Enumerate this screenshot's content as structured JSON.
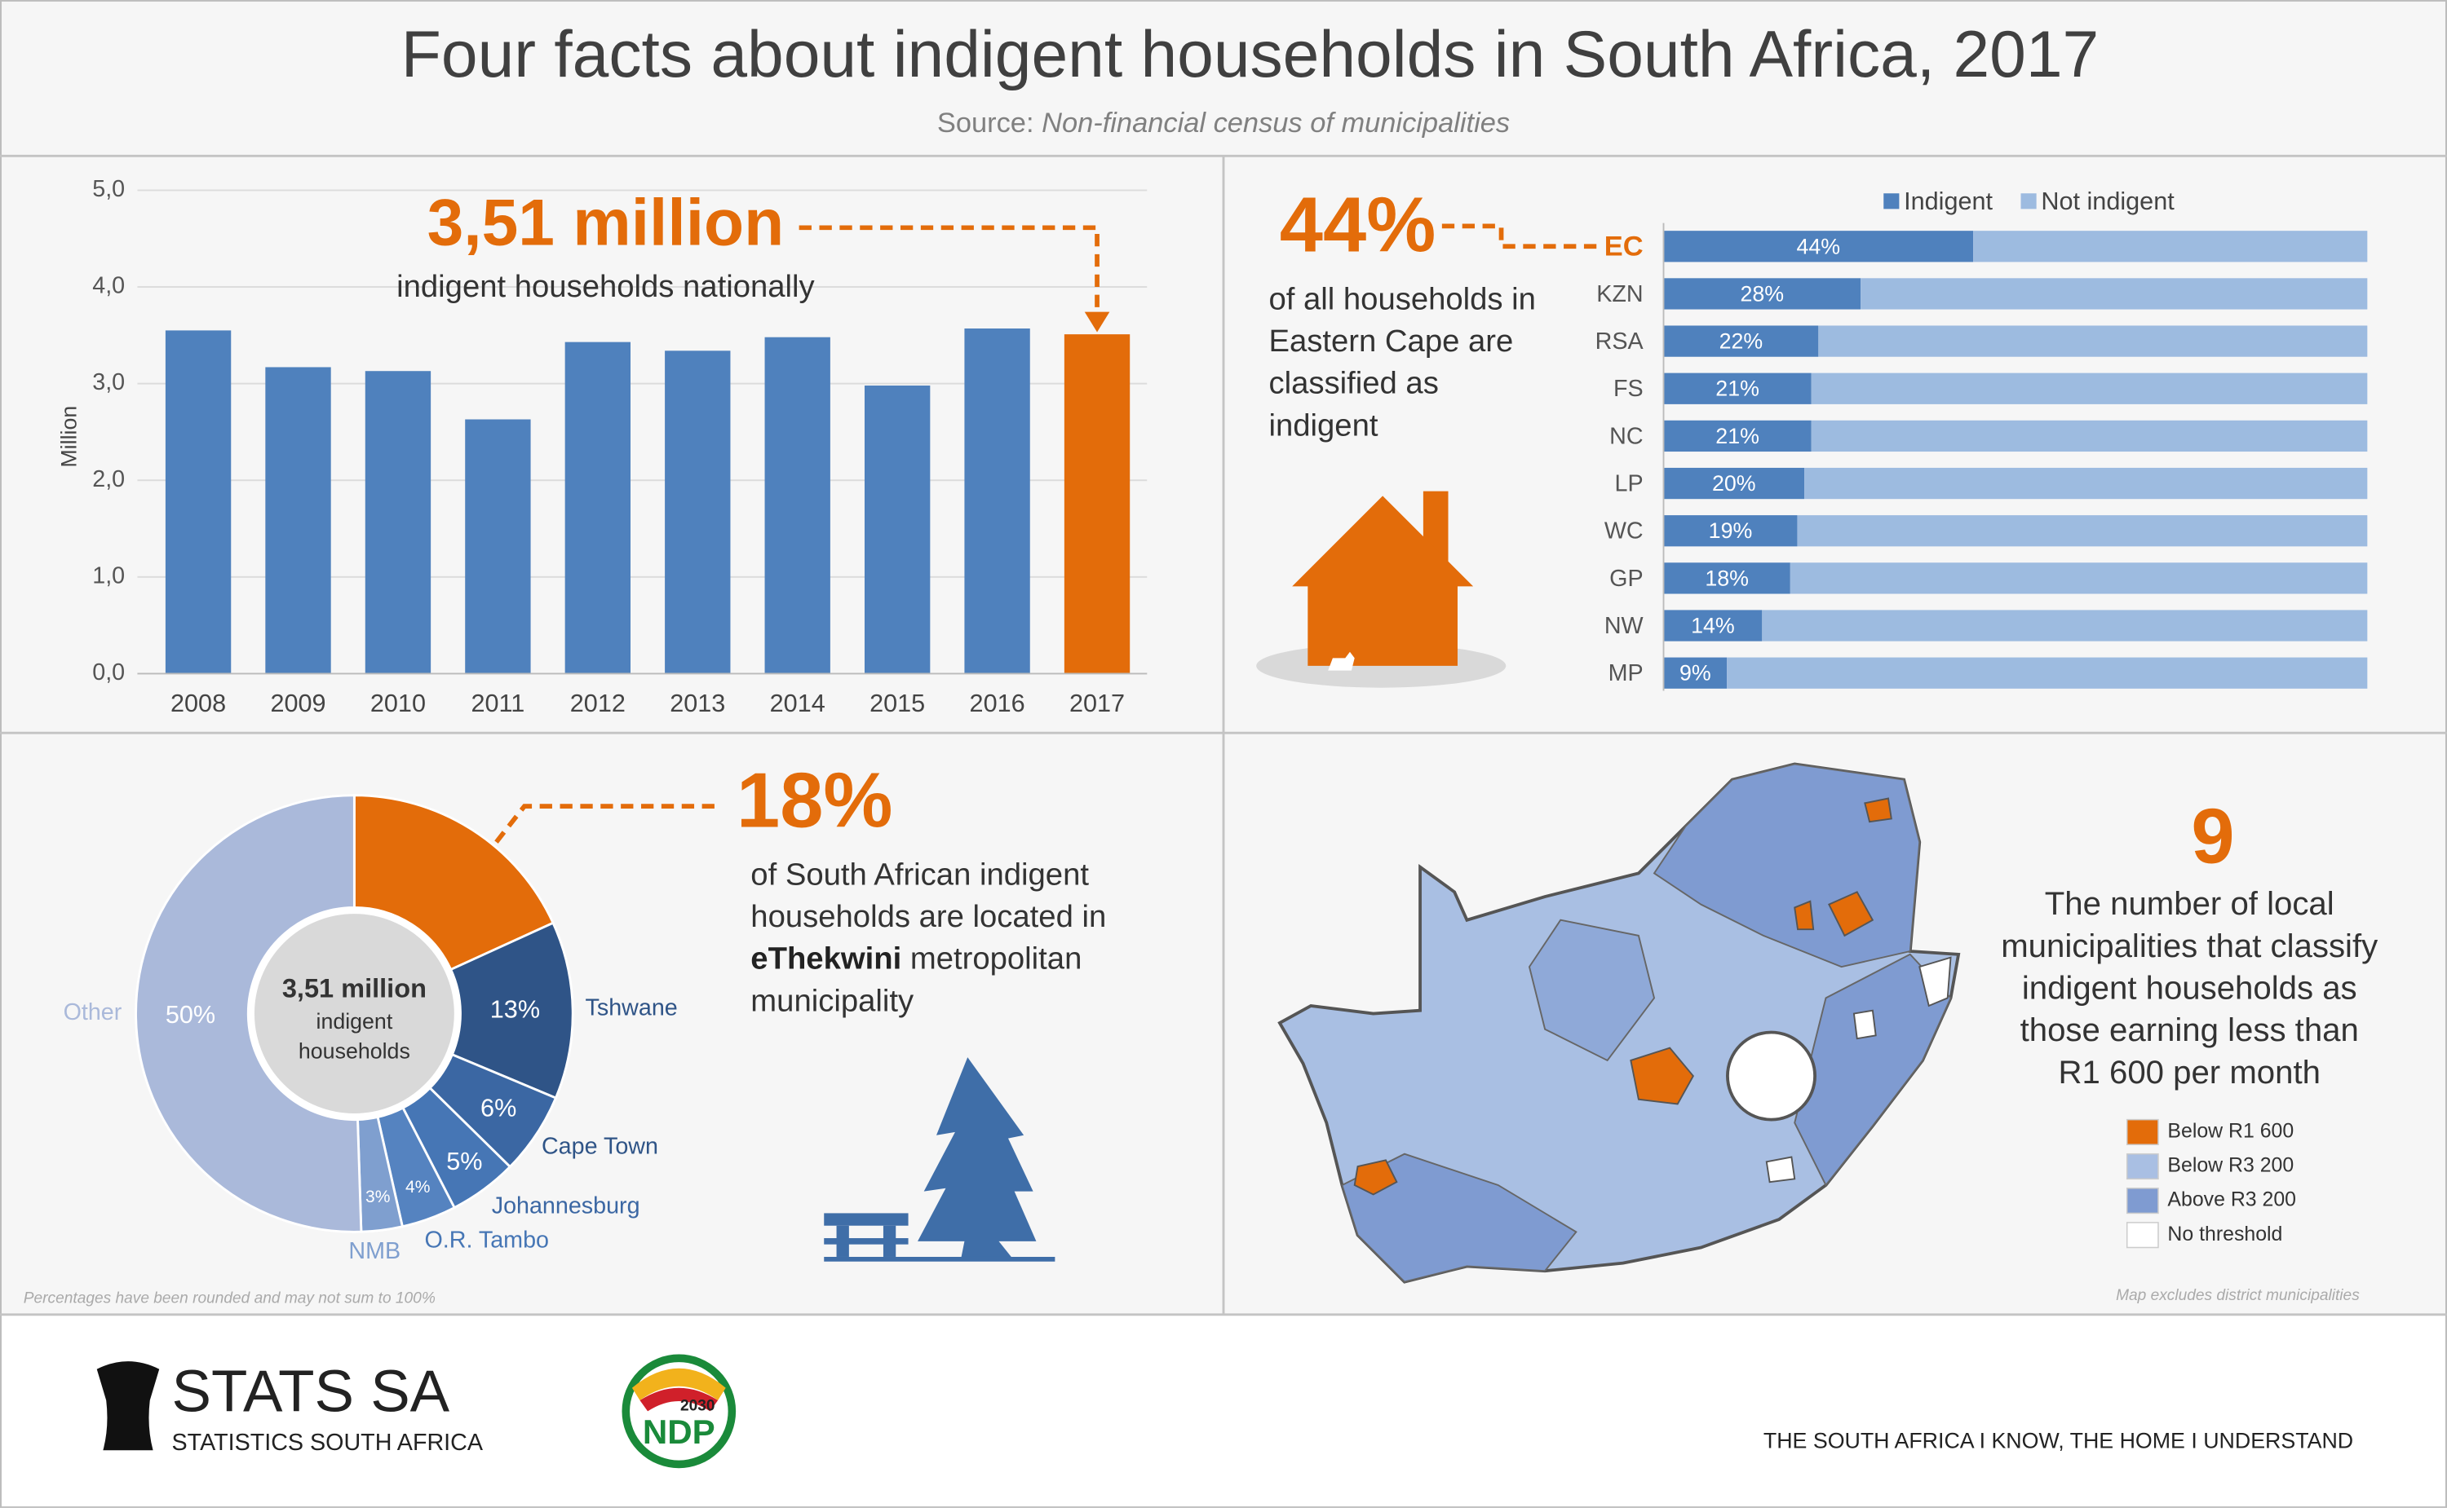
{
  "header": {
    "title": "Four facts about indigent households in South Africa, 2017",
    "source_label": "Source:",
    "source": "Non-financial census of municipalities"
  },
  "chart_data": [
    {
      "type": "bar",
      "y_label": "Million",
      "headline": "3,51 million",
      "headline_sub": "indigent households nationally",
      "headline_color": "#e36c0a",
      "categories": [
        "2008",
        "2009",
        "2010",
        "2011",
        "2012",
        "2013",
        "2014",
        "2015",
        "2016",
        "2017"
      ],
      "values": [
        3.55,
        3.17,
        3.13,
        2.63,
        3.43,
        3.34,
        3.48,
        2.98,
        3.57,
        3.51
      ],
      "colors": [
        "#4f81bd",
        "#4f81bd",
        "#4f81bd",
        "#4f81bd",
        "#4f81bd",
        "#4f81bd",
        "#4f81bd",
        "#4f81bd",
        "#4f81bd",
        "#e36c0a"
      ],
      "ylim": [
        0,
        5
      ],
      "yticks": [
        {
          "value": 0,
          "label": "0,0"
        },
        {
          "value": 1,
          "label": "1,0"
        },
        {
          "value": 2,
          "label": "2,0"
        },
        {
          "value": 3,
          "label": "3,0"
        },
        {
          "value": 4,
          "label": "4,0"
        },
        {
          "value": 5,
          "label": "5,0"
        }
      ],
      "grid": true
    },
    {
      "type": "stacked_hbar",
      "headline": "44%",
      "headline_color": "#e36c0a",
      "text_lines": [
        "of all households in",
        "Eastern Cape are",
        "classified as",
        "indigent"
      ],
      "categories": [
        "EC",
        "KZN",
        "RSA",
        "FS",
        "NC",
        "LP",
        "WC",
        "GP",
        "NW",
        "MP"
      ],
      "category_colors": [
        "#e36c0a",
        "#555555",
        "#555555",
        "#555555",
        "#555555",
        "#555555",
        "#555555",
        "#555555",
        "#555555",
        "#555555"
      ],
      "xlim": [
        0,
        100
      ],
      "legend": "top",
      "series": [
        {
          "name": "Indigent",
          "color": "#4f81bd",
          "values": [
            44,
            28,
            22,
            21,
            21,
            20,
            19,
            18,
            14,
            9
          ],
          "value_labels": [
            "44%",
            "28%",
            "22%",
            "21%",
            "21%",
            "20%",
            "19%",
            "18%",
            "14%",
            "9%"
          ]
        },
        {
          "name": "Not indigent",
          "color": "#9dbbe0",
          "values": [
            56,
            72,
            78,
            79,
            79,
            80,
            81,
            82,
            86,
            91
          ]
        }
      ]
    },
    {
      "type": "donut",
      "center_lines": [
        "3,51 million",
        "indigent",
        "households"
      ],
      "text_lines": [
        "of South African indigent",
        "households are located in"
      ],
      "text_bold": "eThekwini",
      "text_after": " metropolitan",
      "text_last": "municipality",
      "headline_color": "#e36c0a",
      "note": "Percentages have been rounded and may not sum to 100%",
      "categories": [
        null,
        "Tshwane",
        "Cape Town",
        "Johannesburg",
        "O.R. Tambo",
        "NMB",
        "Other"
      ],
      "values": [
        18,
        13,
        6,
        5,
        4,
        3,
        50
      ],
      "value_labels": [
        "18%",
        "13%",
        "6%",
        "5%",
        "4%",
        "3%",
        "50%"
      ],
      "colors": [
        "#e36c0a",
        "#2f5487",
        "#3b67a3",
        "#4676b5",
        "#5583c0",
        "#7f9fcf",
        "#aab9da"
      ],
      "label_colors": [
        null,
        "#2f5487",
        "#2f5487",
        "#3b67a3",
        "#4676b5",
        "#7f9fcf",
        "#aab9da"
      ]
    }
  ],
  "map_panel": {
    "number": "9",
    "lines": [
      "The number of local",
      "municipalities that classify",
      "indigent households as",
      "those earning less than",
      "R1 600 per month"
    ],
    "legend": [
      {
        "label": "Below R1 600",
        "color": "#e36c0a"
      },
      {
        "label": "Below R3 200",
        "color": "#a9bfe3"
      },
      {
        "label": "Above R3 200",
        "color": "#7f9bd1"
      },
      {
        "label": "No threshold",
        "color": "#ffffff"
      }
    ],
    "note": "Map excludes district municipalities"
  },
  "footer": {
    "logo": "STATS SA",
    "logo_sub": "STATISTICS SOUTH AFRICA",
    "ndp": "NDP",
    "ndp_year": "2030",
    "tagline": "THE SOUTH AFRICA I KNOW, THE HOME I UNDERSTAND"
  }
}
